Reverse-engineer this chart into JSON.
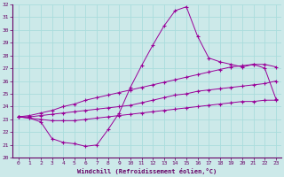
{
  "xlabel": "Windchill (Refroidissement éolien,°C)",
  "xlim": [
    -0.5,
    23.5
  ],
  "ylim": [
    20,
    32
  ],
  "xticks": [
    0,
    1,
    2,
    3,
    4,
    5,
    6,
    7,
    8,
    9,
    10,
    11,
    12,
    13,
    14,
    15,
    16,
    17,
    18,
    19,
    20,
    21,
    22,
    23
  ],
  "yticks": [
    20,
    21,
    22,
    23,
    24,
    25,
    26,
    27,
    28,
    29,
    30,
    31,
    32
  ],
  "bg_color": "#cce9e9",
  "line_color": "#990099",
  "grid_color": "#aadddd",
  "lines": [
    {
      "x": [
        0,
        1,
        2,
        3,
        4,
        5,
        6,
        7,
        8,
        9,
        10,
        11,
        12,
        13,
        14,
        15,
        16,
        17,
        18,
        19,
        20,
        21,
        22,
        23
      ],
      "y": [
        23.2,
        23.1,
        22.8,
        21.5,
        21.2,
        21.1,
        20.9,
        21.0,
        22.2,
        23.5,
        25.5,
        27.2,
        28.8,
        30.3,
        31.5,
        31.8,
        29.5,
        27.8,
        27.5,
        27.3,
        27.1,
        27.3,
        27.0,
        24.6
      ]
    },
    {
      "x": [
        0,
        1,
        2,
        3,
        4,
        5,
        6,
        7,
        8,
        9,
        10,
        11,
        12,
        13,
        14,
        15,
        16,
        17,
        18,
        19,
        20,
        21,
        22,
        23
      ],
      "y": [
        23.2,
        23.3,
        23.5,
        23.7,
        24.0,
        24.2,
        24.5,
        24.7,
        24.9,
        25.1,
        25.3,
        25.5,
        25.7,
        25.9,
        26.1,
        26.3,
        26.5,
        26.7,
        26.9,
        27.1,
        27.2,
        27.3,
        27.3,
        27.1
      ]
    },
    {
      "x": [
        0,
        1,
        2,
        3,
        4,
        5,
        6,
        7,
        8,
        9,
        10,
        11,
        12,
        13,
        14,
        15,
        16,
        17,
        18,
        19,
        20,
        21,
        22,
        23
      ],
      "y": [
        23.2,
        23.2,
        23.3,
        23.4,
        23.5,
        23.6,
        23.7,
        23.8,
        23.9,
        24.0,
        24.1,
        24.3,
        24.5,
        24.7,
        24.9,
        25.0,
        25.2,
        25.3,
        25.4,
        25.5,
        25.6,
        25.7,
        25.8,
        26.0
      ]
    },
    {
      "x": [
        0,
        1,
        2,
        3,
        4,
        5,
        6,
        7,
        8,
        9,
        10,
        11,
        12,
        13,
        14,
        15,
        16,
        17,
        18,
        19,
        20,
        21,
        22,
        23
      ],
      "y": [
        23.2,
        23.1,
        23.0,
        22.9,
        22.9,
        22.9,
        23.0,
        23.1,
        23.2,
        23.3,
        23.4,
        23.5,
        23.6,
        23.7,
        23.8,
        23.9,
        24.0,
        24.1,
        24.2,
        24.3,
        24.4,
        24.4,
        24.5,
        24.5
      ]
    }
  ]
}
